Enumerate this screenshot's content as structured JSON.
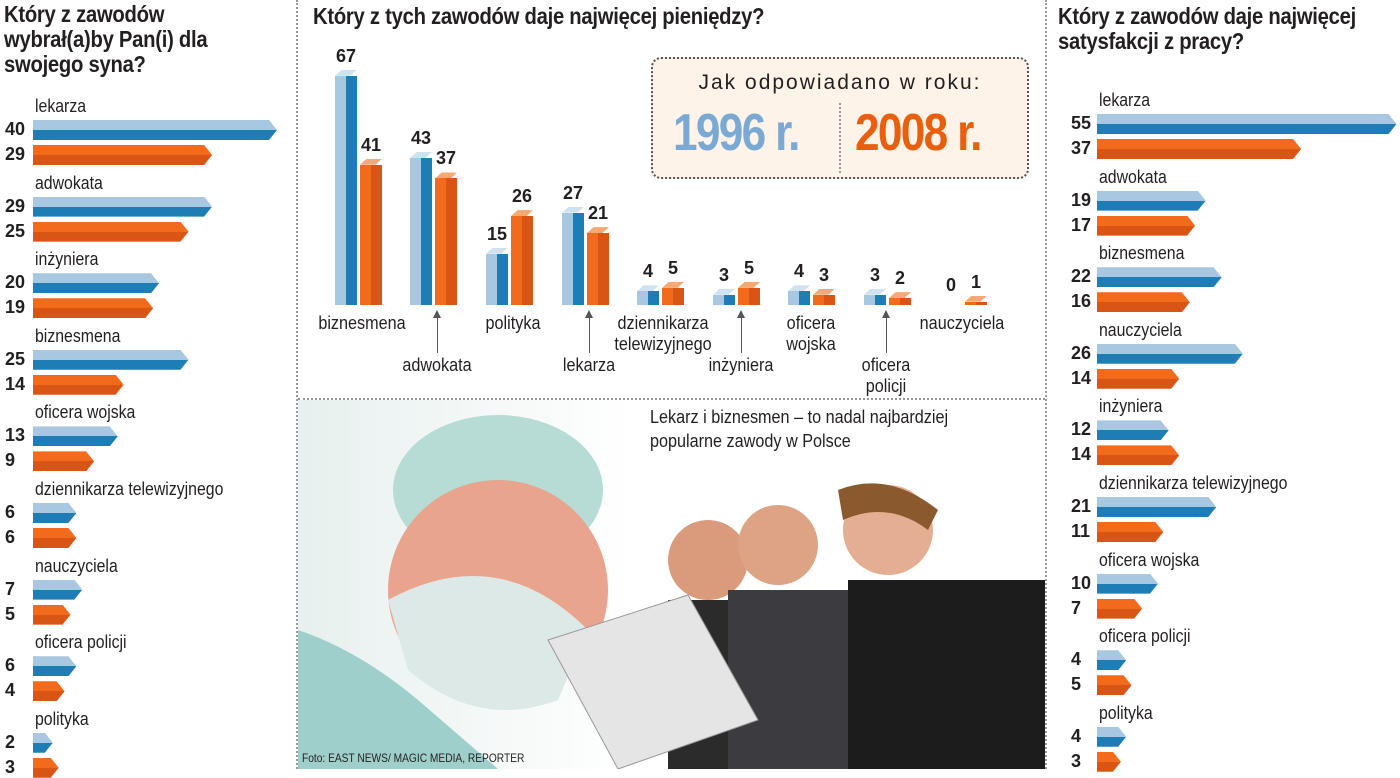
{
  "legend": {
    "heading": "Jak odpowiadano w roku:",
    "year1": "1996 r.",
    "year2": "2008 r.",
    "color1996": "#7aaad4",
    "color2008": "#e8600f"
  },
  "photo": {
    "caption": "Lekarz i biznesmen – to nadal najbardziej popularne zawody w Polsce",
    "credit": "Foto: EAST NEWS/ MAGIC MEDIA, REPORTER"
  },
  "chart_data": [
    {
      "type": "bar",
      "orientation": "horizontal",
      "title": "Który z zawodów wybrał(a)by Pan(i) dla swojego syna?",
      "categories": [
        "lekarza",
        "adwokata",
        "inżyniera",
        "biznesmena",
        "oficera wojska",
        "dziennikarza telewizyjnego",
        "nauczyciela",
        "oficera policji",
        "polityka"
      ],
      "series": [
        {
          "name": "1996 r.",
          "values": [
            40,
            29,
            20,
            25,
            13,
            6,
            7,
            6,
            2
          ]
        },
        {
          "name": "2008 r.",
          "values": [
            29,
            25,
            19,
            14,
            9,
            6,
            5,
            4,
            3
          ]
        }
      ]
    },
    {
      "type": "bar",
      "orientation": "vertical",
      "title": "Który z tych zawodów daje najwięcej pieniędzy?",
      "categories": [
        "biznesmena",
        "adwokata",
        "polityka",
        "lekarza",
        "dziennikarza telewizyjnego",
        "inżyniera",
        "oficera wojska",
        "oficera policji",
        "nauczyciela"
      ],
      "series": [
        {
          "name": "1996 r.",
          "values": [
            67,
            43,
            15,
            27,
            4,
            3,
            4,
            3,
            0
          ]
        },
        {
          "name": "2008 r.",
          "values": [
            41,
            37,
            26,
            21,
            5,
            5,
            3,
            2,
            1
          ]
        }
      ]
    },
    {
      "type": "bar",
      "orientation": "horizontal",
      "title": "Który z zawodów daje najwięcej satysfakcji z pracy?",
      "categories": [
        "lekarza",
        "adwokata",
        "biznesmena",
        "nauczyciela",
        "inżyniera",
        "dziennikarza telewizyjnego",
        "oficera wojska",
        "oficera policji",
        "polityka"
      ],
      "series": [
        {
          "name": "1996 r.",
          "values": [
            55,
            19,
            22,
            26,
            12,
            21,
            10,
            4,
            4
          ]
        },
        {
          "name": "2008 r.",
          "values": [
            37,
            17,
            16,
            14,
            14,
            11,
            7,
            5,
            3
          ]
        }
      ]
    }
  ]
}
